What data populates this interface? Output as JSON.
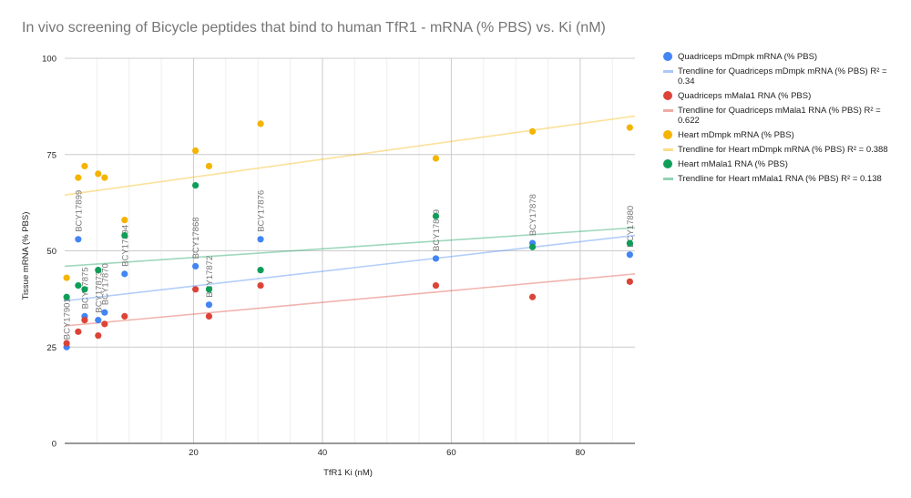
{
  "chart_data": {
    "type": "scatter",
    "title": "In vivo screening of Bicycle peptides that bind to human TfR1 - mRNA (% PBS) vs. Ki (nM)",
    "xlabel": "TfR1 Ki (nM)",
    "ylabel": "Tissue mRNA (% PBS)",
    "xlim": [
      0,
      88.5
    ],
    "ylim": [
      0,
      100
    ],
    "x_ticks": [
      "20",
      "40",
      "60",
      "80"
    ],
    "y_ticks": [
      "0",
      "25",
      "50",
      "75",
      "100"
    ],
    "grid": true,
    "legend_position": "right",
    "x": [
      0.3,
      2.1,
      3.1,
      5.2,
      6.2,
      9.3,
      20.3,
      22.4,
      30.4,
      57.6,
      72.6,
      87.7
    ],
    "point_labels": [
      "BCY17901",
      "BCY17899",
      "BCY17875",
      "BCY17873",
      "BCY17870",
      "BCY17894",
      "BCY17868",
      "BCY17872",
      "BCY17876",
      "BCY17869",
      "BCY17878",
      "BCY17880"
    ],
    "series": [
      {
        "name": "Quadriceps mDmpk mRNA (% PBS)",
        "color": "#4285f4",
        "values": [
          25,
          53,
          33,
          32,
          34,
          44,
          46,
          36,
          53,
          48,
          52,
          49
        ],
        "trendline": {
          "label": "Trendline for Quadriceps mDmpk mRNA (% PBS) R² = 0.34",
          "start": 37,
          "end": 54
        }
      },
      {
        "name": "Quadriceps mMala1 RNA (% PBS)",
        "color": "#db4437",
        "values": [
          26,
          29,
          32,
          28,
          31,
          33,
          40,
          33,
          41,
          41,
          38,
          42
        ],
        "trendline": {
          "label": "Trendline for Quadriceps mMala1 RNA (% PBS) R² = 0.622",
          "start": 30.5,
          "end": 44
        }
      },
      {
        "name": "Heart mDmpk mRNA (% PBS)",
        "color": "#f4b400",
        "values": [
          43,
          69,
          72,
          70,
          69,
          58,
          76,
          72,
          83,
          74,
          81,
          82
        ],
        "trendline": {
          "label": "Trendline for Heart mDmpk mRNA (% PBS) R² = 0.388",
          "start": 64.5,
          "end": 85
        }
      },
      {
        "name": "Heart mMala1 RNA (% PBS)",
        "color": "#0f9d58",
        "values": [
          38,
          41,
          40,
          45,
          null,
          54,
          67,
          40,
          45,
          59,
          51,
          52
        ],
        "trendline": {
          "label": "Trendline for Heart mMala1 RNA (% PBS) R² = 0.138",
          "start": 46,
          "end": 56
        }
      }
    ]
  }
}
